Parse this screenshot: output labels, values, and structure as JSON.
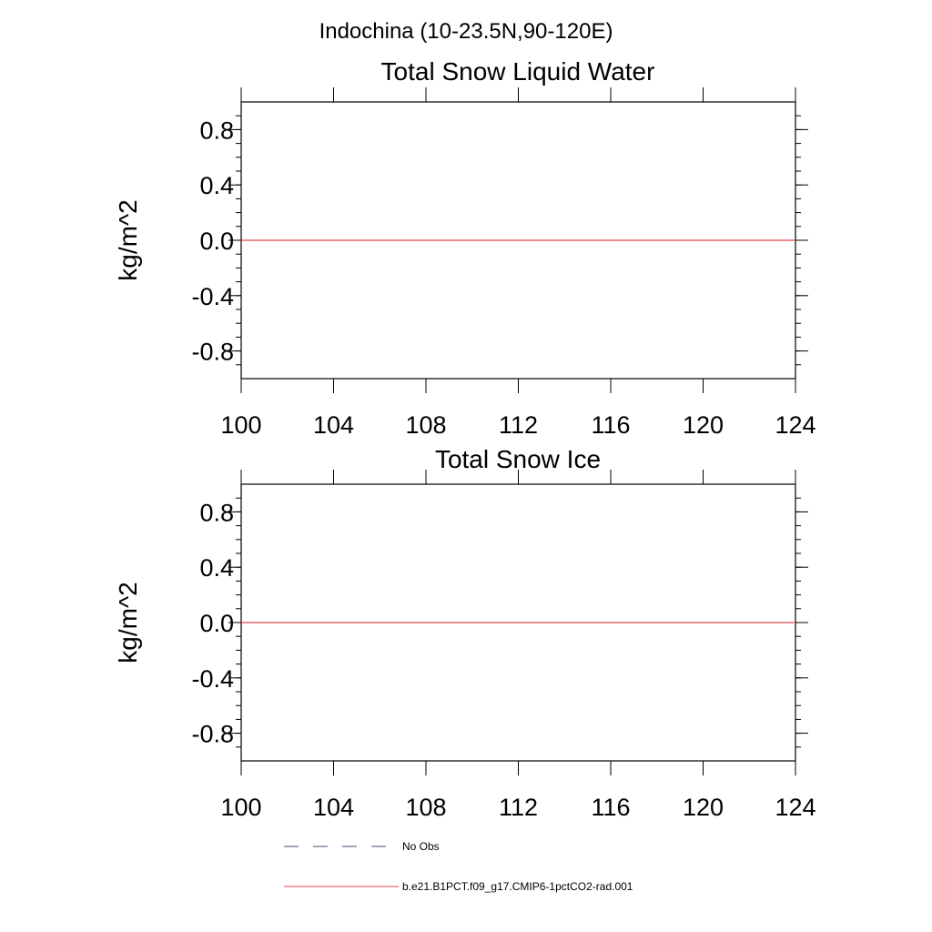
{
  "figure_title": "Indochina (10-23.5N,90-120E)",
  "legend": {
    "entries": [
      {
        "label": "No Obs",
        "style": "dashed",
        "color": "#4a4a7a"
      },
      {
        "label": "b.e21.B1PCT.f09_g17.CMIP6-1pctCO2-rad.001",
        "style": "solid",
        "color": "#e8474a"
      }
    ]
  },
  "chart_data": [
    {
      "type": "line",
      "title": "Total Snow Liquid Water",
      "xlabel": "",
      "ylabel": "kg/m^2",
      "xlim": [
        100,
        124
      ],
      "ylim": [
        -1.0,
        1.0
      ],
      "x_ticks": [
        "100",
        "104",
        "108",
        "112",
        "116",
        "120",
        "124"
      ],
      "y_ticks": [
        "0.8",
        "0.4",
        "0.0",
        "-0.4",
        "-0.8"
      ],
      "series": [
        {
          "name": "b.e21.B1PCT.f09_g17.CMIP6-1pctCO2-rad.001",
          "color": "#e8474a",
          "x": [
            100,
            124
          ],
          "y": [
            0,
            0
          ]
        }
      ]
    },
    {
      "type": "line",
      "title": "Total Snow Ice",
      "xlabel": "",
      "ylabel": "kg/m^2",
      "xlim": [
        100,
        124
      ],
      "ylim": [
        -1.0,
        1.0
      ],
      "x_ticks": [
        "100",
        "104",
        "108",
        "112",
        "116",
        "120",
        "124"
      ],
      "y_ticks": [
        "0.8",
        "0.4",
        "0.0",
        "-0.4",
        "-0.8"
      ],
      "series": [
        {
          "name": "b.e21.B1PCT.f09_g17.CMIP6-1pctCO2-rad.001",
          "color": "#e8474a",
          "x": [
            100,
            124
          ],
          "y": [
            0,
            0
          ]
        }
      ]
    }
  ]
}
